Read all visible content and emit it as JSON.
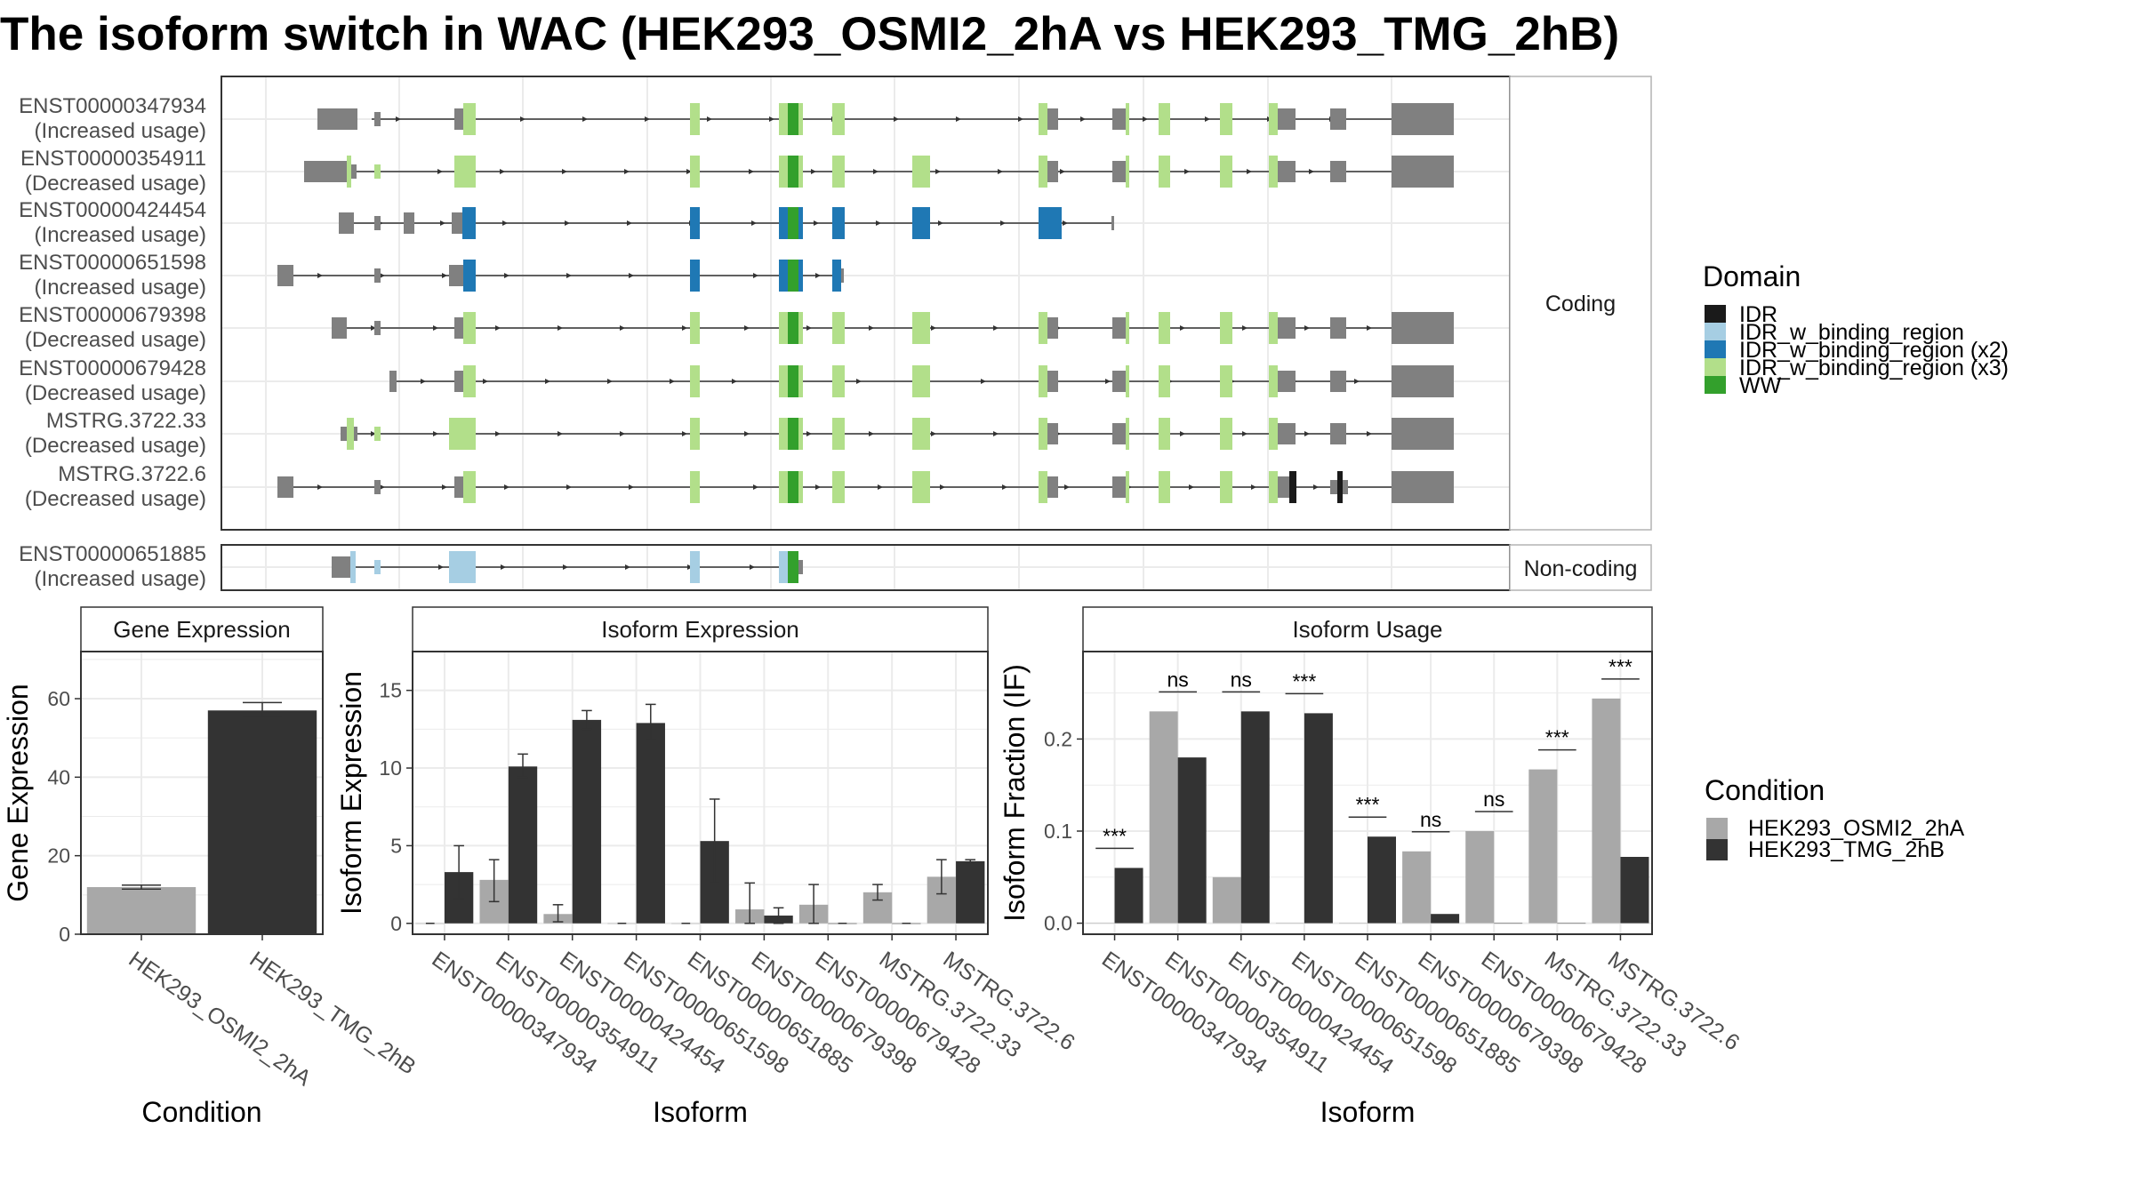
{
  "title": "The isoform switch in WAC (HEK293_OSMI2_2hA vs HEK293_TMG_2hB)",
  "colors": {
    "exon_none": "#808080",
    "IDR": "#1a1a1a",
    "IDR_w_binding_region": "#a6cee3",
    "IDR_w_binding_region (x2)": "#1f78b4",
    "IDR_w_binding_region (x3)": "#b2df8a",
    "WW": "#33a02c",
    "cond_A": "#a8a8a8",
    "cond_B": "#333333"
  },
  "transcript_panel": {
    "facets": [
      "Coding",
      "Non-coding"
    ],
    "transcripts": [
      {
        "id": "ENST00000347934",
        "usage": "(Increased usage)",
        "facet": "Coding"
      },
      {
        "id": "ENST00000354911",
        "usage": "(Decreased usage)",
        "facet": "Coding"
      },
      {
        "id": "ENST00000424454",
        "usage": "(Increased usage)",
        "facet": "Coding"
      },
      {
        "id": "ENST00000651598",
        "usage": "(Increased usage)",
        "facet": "Coding"
      },
      {
        "id": "ENST00000679398",
        "usage": "(Decreased usage)",
        "facet": "Coding"
      },
      {
        "id": "ENST00000679428",
        "usage": "(Decreased usage)",
        "facet": "Coding"
      },
      {
        "id": "MSTRG.3722.33",
        "usage": "(Decreased usage)",
        "facet": "Coding"
      },
      {
        "id": "MSTRG.3722.6",
        "usage": "(Decreased usage)",
        "facet": "Coding"
      },
      {
        "id": "ENST00000651885",
        "usage": "(Increased usage)",
        "facet": "Non-coding"
      }
    ]
  },
  "legend_domain": {
    "title": "Domain",
    "items": [
      "IDR",
      "IDR_w_binding_region",
      "IDR_w_binding_region (x2)",
      "IDR_w_binding_region (x3)",
      "WW"
    ]
  },
  "legend_condition": {
    "title": "Condition",
    "items": [
      "HEK293_OSMI2_2hA",
      "HEK293_TMG_2hB"
    ]
  },
  "chart_data": [
    {
      "type": "bar",
      "title": "Gene Expression",
      "xlabel": "Condition",
      "ylabel": "Gene Expression",
      "categories": [
        "HEK293_OSMI2_2hA",
        "HEK293_TMG_2hB"
      ],
      "values": [
        12,
        57
      ],
      "error_low": [
        11.5,
        55.5
      ],
      "error_high": [
        12.5,
        59
      ],
      "ylim": [
        0,
        72
      ],
      "yticks": [
        0,
        20,
        40,
        60
      ],
      "grid": true
    },
    {
      "type": "bar",
      "title": "Isoform Expression",
      "xlabel": "Isoform",
      "ylabel": "Isoform Expression",
      "categories": [
        "ENST00000347934",
        "ENST00000354911",
        "ENST00000424454",
        "ENST00000651598",
        "ENST00000651885",
        "ENST00000679398",
        "ENST00000679428",
        "MSTRG.3722.33",
        "MSTRG.3722.6"
      ],
      "series": [
        {
          "name": "HEK293_OSMI2_2hA",
          "values": [
            0,
            2.8,
            0.6,
            0,
            0,
            0.9,
            1.2,
            2.0,
            3.0
          ],
          "error_low": [
            0,
            1.4,
            0.1,
            0,
            0,
            0,
            0,
            1.5,
            1.9
          ],
          "error_high": [
            0,
            4.1,
            1.2,
            0,
            0,
            2.6,
            2.5,
            2.5,
            4.1
          ]
        },
        {
          "name": "HEK293_TMG_2hB",
          "values": [
            3.3,
            10.1,
            13.1,
            12.9,
            5.3,
            0.5,
            0,
            0,
            4.0
          ],
          "error_low": [
            1.6,
            9.4,
            12.5,
            11.8,
            2.6,
            0,
            0,
            0,
            3.9
          ],
          "error_high": [
            5.0,
            10.9,
            13.7,
            14.1,
            8.0,
            1.0,
            0,
            0,
            4.1
          ]
        }
      ],
      "ylim": [
        -0.7,
        17.5
      ],
      "yticks": [
        0,
        5,
        10,
        15
      ],
      "grid": true
    },
    {
      "type": "bar",
      "title": "Isoform Usage",
      "xlabel": "Isoform",
      "ylabel": "Isoform Fraction (IF)",
      "categories": [
        "ENST00000347934",
        "ENST00000354911",
        "ENST00000424454",
        "ENST00000651598",
        "ENST00000651885",
        "ENST00000679398",
        "ENST00000679428",
        "MSTRG.3722.33",
        "MSTRG.3722.6"
      ],
      "series": [
        {
          "name": "HEK293_OSMI2_2hA",
          "values": [
            0,
            0.23,
            0.05,
            0,
            0,
            0.078,
            0.1,
            0.167,
            0.244
          ]
        },
        {
          "name": "HEK293_TMG_2hB",
          "values": [
            0.06,
            0.18,
            0.23,
            0.228,
            0.094,
            0.01,
            0,
            0,
            0.072
          ]
        }
      ],
      "significance": [
        "***",
        "ns",
        "ns",
        "***",
        "***",
        "ns",
        "ns",
        "***",
        "***"
      ],
      "ylim": [
        -0.012,
        0.295
      ],
      "yticks": [
        "0.0",
        "0.1",
        "0.2"
      ],
      "grid": true
    }
  ]
}
